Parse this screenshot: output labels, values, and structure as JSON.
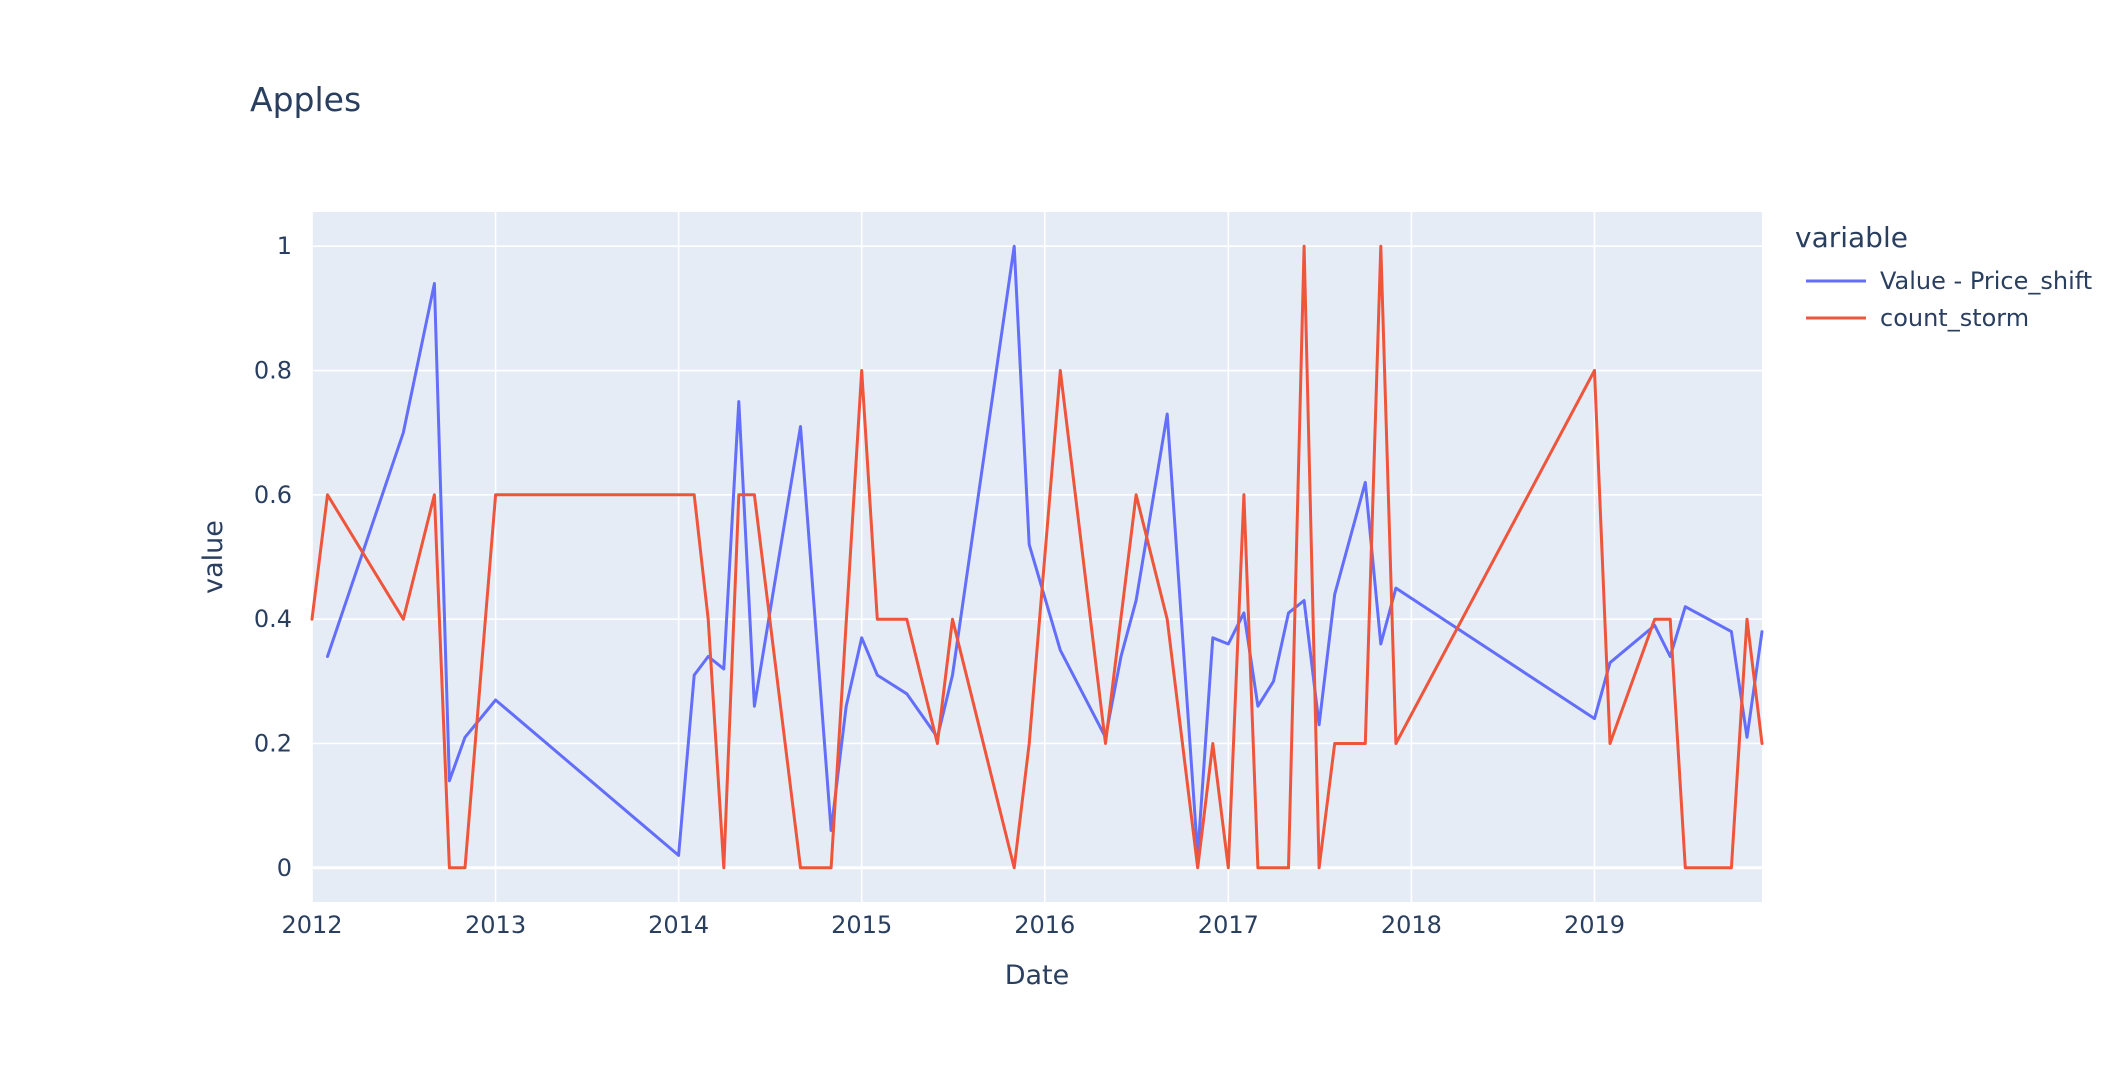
{
  "chart_data": {
    "type": "line",
    "title": "Apples",
    "xlabel": "Date",
    "ylabel": "value",
    "x_ticks": [
      "2012",
      "2013",
      "2014",
      "2015",
      "2016",
      "2017",
      "2018",
      "2019"
    ],
    "y_ticks": [
      "0",
      "0.2",
      "0.4",
      "0.6",
      "0.8",
      "1"
    ],
    "xlim": [
      "2012-01-01",
      "2019-12-01"
    ],
    "ylim": [
      -0.055,
      1.055
    ],
    "grid": true,
    "legend_title": "variable",
    "legend_position": "right",
    "series": [
      {
        "name": "Value - Price_shift",
        "color": "#636efa",
        "points": [
          [
            "2012-02-01",
            0.34
          ],
          [
            "2012-07-01",
            0.7
          ],
          [
            "2012-09-01",
            0.94
          ],
          [
            "2012-10-01",
            0.14
          ],
          [
            "2012-11-01",
            0.21
          ],
          [
            "2013-01-01",
            0.27
          ],
          [
            "2014-01-01",
            0.02
          ],
          [
            "2014-02-01",
            0.31
          ],
          [
            "2014-03-01",
            0.34
          ],
          [
            "2014-04-01",
            0.32
          ],
          [
            "2014-05-01",
            0.75
          ],
          [
            "2014-06-01",
            0.26
          ],
          [
            "2014-09-01",
            0.71
          ],
          [
            "2014-11-01",
            0.06
          ],
          [
            "2014-12-01",
            0.26
          ],
          [
            "2015-01-01",
            0.37
          ],
          [
            "2015-02-01",
            0.31
          ],
          [
            "2015-04-01",
            0.28
          ],
          [
            "2015-06-01",
            0.21
          ],
          [
            "2015-07-01",
            0.31
          ],
          [
            "2015-11-01",
            1.0
          ],
          [
            "2015-12-01",
            0.52
          ],
          [
            "2016-02-01",
            0.35
          ],
          [
            "2016-05-01",
            0.21
          ],
          [
            "2016-06-01",
            0.34
          ],
          [
            "2016-07-01",
            0.43
          ],
          [
            "2016-09-01",
            0.73
          ],
          [
            "2016-11-01",
            0.02
          ],
          [
            "2016-12-01",
            0.37
          ],
          [
            "2017-01-01",
            0.36
          ],
          [
            "2017-02-01",
            0.41
          ],
          [
            "2017-03-01",
            0.26
          ],
          [
            "2017-04-01",
            0.3
          ],
          [
            "2017-05-01",
            0.41
          ],
          [
            "2017-06-01",
            0.43
          ],
          [
            "2017-07-01",
            0.23
          ],
          [
            "2017-08-01",
            0.44
          ],
          [
            "2017-10-01",
            0.62
          ],
          [
            "2017-11-01",
            0.36
          ],
          [
            "2017-12-01",
            0.45
          ],
          [
            "2019-01-01",
            0.24
          ],
          [
            "2019-02-01",
            0.33
          ],
          [
            "2019-05-01",
            0.39
          ],
          [
            "2019-06-01",
            0.34
          ],
          [
            "2019-07-01",
            0.42
          ],
          [
            "2019-10-01",
            0.38
          ],
          [
            "2019-11-01",
            0.21
          ],
          [
            "2019-12-01",
            0.38
          ]
        ]
      },
      {
        "name": "count_storm",
        "color": "#ef553b",
        "points": [
          [
            "2012-01-01",
            0.4
          ],
          [
            "2012-02-01",
            0.6
          ],
          [
            "2012-07-01",
            0.4
          ],
          [
            "2012-09-01",
            0.6
          ],
          [
            "2012-10-01",
            0.0
          ],
          [
            "2012-11-01",
            0.0
          ],
          [
            "2013-01-01",
            0.6
          ],
          [
            "2014-02-01",
            0.6
          ],
          [
            "2014-03-01",
            0.4
          ],
          [
            "2014-04-01",
            0.0
          ],
          [
            "2014-05-01",
            0.6
          ],
          [
            "2014-06-01",
            0.6
          ],
          [
            "2014-09-01",
            0.0
          ],
          [
            "2014-11-01",
            0.0
          ],
          [
            "2015-01-01",
            0.8
          ],
          [
            "2015-02-01",
            0.4
          ],
          [
            "2015-04-01",
            0.4
          ],
          [
            "2015-06-01",
            0.2
          ],
          [
            "2015-07-01",
            0.4
          ],
          [
            "2015-11-01",
            0.0
          ],
          [
            "2015-12-01",
            0.2
          ],
          [
            "2016-02-01",
            0.8
          ],
          [
            "2016-05-01",
            0.2
          ],
          [
            "2016-07-01",
            0.6
          ],
          [
            "2016-09-01",
            0.4
          ],
          [
            "2016-11-01",
            0.0
          ],
          [
            "2016-12-01",
            0.2
          ],
          [
            "2017-01-01",
            0.0
          ],
          [
            "2017-02-01",
            0.6
          ],
          [
            "2017-03-01",
            0.0
          ],
          [
            "2017-05-01",
            0.0
          ],
          [
            "2017-06-01",
            1.0
          ],
          [
            "2017-07-01",
            0.0
          ],
          [
            "2017-08-01",
            0.2
          ],
          [
            "2017-10-01",
            0.2
          ],
          [
            "2017-11-01",
            1.0
          ],
          [
            "2017-12-01",
            0.2
          ],
          [
            "2019-01-01",
            0.8
          ],
          [
            "2019-02-01",
            0.2
          ],
          [
            "2019-05-01",
            0.4
          ],
          [
            "2019-06-01",
            0.4
          ],
          [
            "2019-07-01",
            0.0
          ],
          [
            "2019-10-01",
            0.0
          ],
          [
            "2019-11-01",
            0.4
          ],
          [
            "2019-12-01",
            0.2
          ]
        ]
      }
    ]
  }
}
